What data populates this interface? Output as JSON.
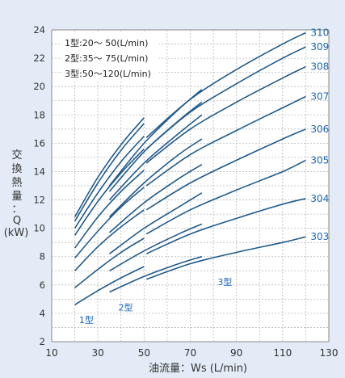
{
  "chart_data": {
    "type": "line",
    "xlabel": "油流量：Ws (L/min)",
    "ylabel": [
      "交",
      "換",
      "熱",
      "量",
      "：",
      "Q",
      "(kW)"
    ],
    "xlim": [
      10,
      130
    ],
    "ylim": [
      2,
      24
    ],
    "x_ticks": [
      "10",
      "30",
      "50",
      "70",
      "90",
      "110",
      "130"
    ],
    "y_ticks": [
      "2",
      "4",
      "6",
      "8",
      "10",
      "12",
      "14",
      "16",
      "18",
      "20",
      "22",
      "24"
    ],
    "grid": true,
    "colors": {
      "line": "#1f5a8c",
      "label": "#1a66b8",
      "panel_bg": "#e3ecf6",
      "plot_bg": "#ffffff",
      "grid": "#b8b8b8"
    },
    "legend_text": [
      "1型:20～ 50(L/min)",
      "2型:35～ 75(L/min)",
      "3型:50～120(L/min)"
    ],
    "group_labels": [
      {
        "text": "1型",
        "x": 25,
        "y": 3.3
      },
      {
        "text": "2型",
        "x": 42,
        "y": 4.2
      },
      {
        "text": "3型",
        "x": 85,
        "y": 6.0
      }
    ],
    "series": [
      {
        "name": "303",
        "points": [
          [
            51,
            6.4
          ],
          [
            70,
            7.5
          ],
          [
            90,
            8.3
          ],
          [
            110,
            9.0
          ],
          [
            120,
            9.4
          ]
        ]
      },
      {
        "name": "304",
        "points": [
          [
            51,
            8.2
          ],
          [
            70,
            9.6
          ],
          [
            90,
            10.7
          ],
          [
            110,
            11.7
          ],
          [
            120,
            12.1
          ]
        ]
      },
      {
        "name": "305",
        "points": [
          [
            51,
            9.6
          ],
          [
            70,
            11.3
          ],
          [
            90,
            12.7
          ],
          [
            110,
            14.0
          ],
          [
            120,
            14.8
          ]
        ]
      },
      {
        "name": "306",
        "points": [
          [
            51,
            11.3
          ],
          [
            70,
            13.2
          ],
          [
            90,
            14.8
          ],
          [
            110,
            16.3
          ],
          [
            120,
            17.0
          ]
        ]
      },
      {
        "name": "307",
        "points": [
          [
            51,
            13.0
          ],
          [
            70,
            15.2
          ],
          [
            90,
            16.9
          ],
          [
            110,
            18.5
          ],
          [
            120,
            19.3
          ]
        ]
      },
      {
        "name": "308",
        "points": [
          [
            51,
            14.6
          ],
          [
            70,
            17.0
          ],
          [
            90,
            18.9
          ],
          [
            110,
            20.6
          ],
          [
            120,
            21.4
          ]
        ]
      },
      {
        "name": "309",
        "points": [
          [
            51,
            15.6
          ],
          [
            70,
            18.2
          ],
          [
            90,
            20.2
          ],
          [
            110,
            22.0
          ],
          [
            120,
            22.8
          ]
        ]
      },
      {
        "name": "310",
        "points": [
          [
            51,
            16.4
          ],
          [
            70,
            19.1
          ],
          [
            90,
            21.2
          ],
          [
            110,
            23.0
          ],
          [
            120,
            23.8
          ]
        ]
      },
      {
        "points": [
          [
            35,
            5.5
          ],
          [
            50,
            6.6
          ],
          [
            65,
            7.5
          ],
          [
            75,
            8.0
          ]
        ]
      },
      {
        "points": [
          [
            35,
            7.0
          ],
          [
            50,
            8.4
          ],
          [
            65,
            9.6
          ],
          [
            75,
            10.3
          ]
        ]
      },
      {
        "points": [
          [
            35,
            8.2
          ],
          [
            50,
            10.0
          ],
          [
            65,
            11.5
          ],
          [
            75,
            12.5
          ]
        ]
      },
      {
        "points": [
          [
            35,
            9.7
          ],
          [
            50,
            11.8
          ],
          [
            65,
            13.5
          ],
          [
            75,
            14.5
          ]
        ]
      },
      {
        "points": [
          [
            35,
            10.8
          ],
          [
            50,
            13.2
          ],
          [
            65,
            15.2
          ],
          [
            75,
            16.3
          ]
        ]
      },
      {
        "points": [
          [
            35,
            12.0
          ],
          [
            50,
            14.6
          ],
          [
            65,
            16.7
          ],
          [
            75,
            18.0
          ]
        ]
      },
      {
        "points": [
          [
            35,
            12.6
          ],
          [
            50,
            15.4
          ],
          [
            65,
            17.6
          ],
          [
            75,
            18.9
          ]
        ]
      },
      {
        "points": [
          [
            35,
            13.0
          ],
          [
            50,
            16.0
          ],
          [
            65,
            18.4
          ],
          [
            75,
            19.8
          ]
        ]
      },
      {
        "points": [
          [
            20,
            4.6
          ],
          [
            30,
            5.6
          ],
          [
            40,
            6.5
          ],
          [
            50,
            7.3
          ]
        ]
      },
      {
        "points": [
          [
            20,
            5.8
          ],
          [
            30,
            7.1
          ],
          [
            40,
            8.3
          ],
          [
            50,
            9.3
          ]
        ]
      },
      {
        "points": [
          [
            20,
            7.0
          ],
          [
            30,
            8.7
          ],
          [
            40,
            10.1
          ],
          [
            50,
            11.3
          ]
        ]
      },
      {
        "points": [
          [
            20,
            7.9
          ],
          [
            30,
            9.8
          ],
          [
            40,
            11.5
          ],
          [
            50,
            12.9
          ]
        ]
      },
      {
        "points": [
          [
            20,
            8.6
          ],
          [
            30,
            10.8
          ],
          [
            40,
            12.6
          ],
          [
            50,
            14.1
          ]
        ]
      },
      {
        "points": [
          [
            20,
            9.5
          ],
          [
            30,
            11.9
          ],
          [
            40,
            13.9
          ],
          [
            50,
            15.6
          ]
        ]
      },
      {
        "points": [
          [
            20,
            10.0
          ],
          [
            30,
            12.5
          ],
          [
            40,
            14.7
          ],
          [
            50,
            16.5
          ]
        ]
      },
      {
        "points": [
          [
            20,
            10.5
          ],
          [
            30,
            13.2
          ],
          [
            40,
            15.5
          ],
          [
            50,
            17.4
          ]
        ]
      },
      {
        "points": [
          [
            20,
            10.8
          ],
          [
            30,
            13.6
          ],
          [
            40,
            15.9
          ],
          [
            50,
            17.8
          ]
        ]
      }
    ]
  }
}
